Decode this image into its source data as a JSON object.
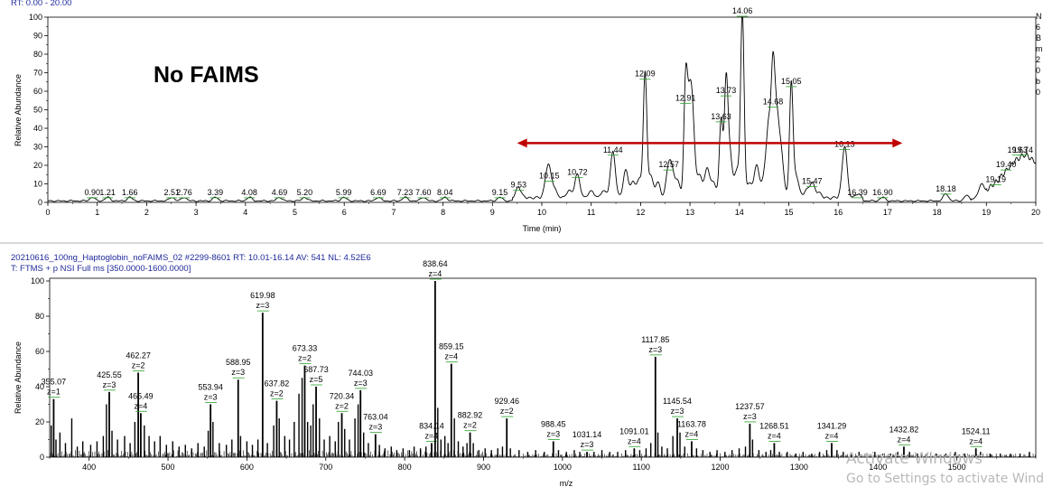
{
  "chromatogram": {
    "header": "RT: 0.00 - 20.00",
    "ylabel": "Relative Abundance",
    "xlabel": "Time (min)",
    "annotation": "No FAIMS",
    "side_text": "N\n6\nB\nm\n2\n0\nb\n0",
    "arrow_color": "#c00000"
  },
  "spectrum": {
    "header1": "20210616_100ng_Haptoglobin_noFAIMS_02 #2299-8601   RT: 10.01-16.14   AV: 541   NL: 4.52E6",
    "header2": "T: FTMS + p NSI Full ms [350.0000-1600.0000]",
    "ylabel": "Relative Abundance",
    "xlabel": "m/z"
  },
  "watermark": {
    "line1": "Activate Windows",
    "line2": "Go to Settings to activate Windows."
  },
  "chart_data": [
    {
      "type": "line",
      "title": "RT: 0.00 - 20.00",
      "xlabel": "Time (min)",
      "ylabel": "Relative Abundance",
      "xlim": [
        0,
        20
      ],
      "ylim": [
        0,
        100
      ],
      "x_ticks": [
        0,
        1,
        2,
        3,
        4,
        5,
        6,
        7,
        8,
        9,
        10,
        11,
        12,
        13,
        14,
        15,
        16,
        17,
        18,
        19,
        20
      ],
      "y_ticks": [
        0,
        10,
        20,
        30,
        40,
        50,
        60,
        70,
        80,
        90,
        100
      ],
      "peak_labels": [
        {
          "x": 0.9,
          "y": 2,
          "label": "0.90"
        },
        {
          "x": 1.21,
          "y": 2,
          "label": "1.21"
        },
        {
          "x": 1.66,
          "y": 2,
          "label": "1.66"
        },
        {
          "x": 2.51,
          "y": 2,
          "label": "2.51"
        },
        {
          "x": 2.76,
          "y": 2,
          "label": "2.76"
        },
        {
          "x": 3.39,
          "y": 2,
          "label": "3.39"
        },
        {
          "x": 4.08,
          "y": 2,
          "label": "4.08"
        },
        {
          "x": 4.69,
          "y": 2,
          "label": "4.69"
        },
        {
          "x": 5.2,
          "y": 2,
          "label": "5.20"
        },
        {
          "x": 5.99,
          "y": 2,
          "label": "5.99"
        },
        {
          "x": 6.69,
          "y": 2,
          "label": "6.69"
        },
        {
          "x": 7.23,
          "y": 2,
          "label": "7.23"
        },
        {
          "x": 7.6,
          "y": 2,
          "label": "7.60"
        },
        {
          "x": 8.04,
          "y": 2,
          "label": "8.04"
        },
        {
          "x": 9.15,
          "y": 2,
          "label": "9.15"
        },
        {
          "x": 9.53,
          "y": 6,
          "label": "9.53"
        },
        {
          "x": 10.15,
          "y": 11,
          "label": "10.15"
        },
        {
          "x": 10.72,
          "y": 13,
          "label": "10.72"
        },
        {
          "x": 11.44,
          "y": 25,
          "label": "11.44"
        },
        {
          "x": 12.09,
          "y": 66,
          "label": "12.09"
        },
        {
          "x": 12.57,
          "y": 17,
          "label": "12.57"
        },
        {
          "x": 12.91,
          "y": 53,
          "label": "12.91"
        },
        {
          "x": 13.63,
          "y": 43,
          "label": "13.63"
        },
        {
          "x": 13.73,
          "y": 57,
          "label": "13.73"
        },
        {
          "x": 14.06,
          "y": 100,
          "label": "14.06"
        },
        {
          "x": 14.68,
          "y": 51,
          "label": "14.68"
        },
        {
          "x": 15.05,
          "y": 62,
          "label": "15.05"
        },
        {
          "x": 15.47,
          "y": 8,
          "label": "15.47"
        },
        {
          "x": 16.13,
          "y": 28,
          "label": "16.13"
        },
        {
          "x": 16.39,
          "y": 2,
          "label": "16.39"
        },
        {
          "x": 16.9,
          "y": 2,
          "label": "16.90"
        },
        {
          "x": 18.18,
          "y": 4,
          "label": "18.18"
        },
        {
          "x": 19.19,
          "y": 9,
          "label": "19.19"
        },
        {
          "x": 19.4,
          "y": 17,
          "label": "19.40"
        },
        {
          "x": 19.63,
          "y": 25,
          "label": "19.63"
        },
        {
          "x": 19.74,
          "y": 25,
          "label": "19.74"
        }
      ],
      "minor_peaks": [
        {
          "x": 10.1,
          "y": 9
        },
        {
          "x": 10.25,
          "y": 5
        },
        {
          "x": 10.55,
          "y": 4
        },
        {
          "x": 11.0,
          "y": 4
        },
        {
          "x": 11.25,
          "y": 4
        },
        {
          "x": 11.7,
          "y": 15
        },
        {
          "x": 11.85,
          "y": 8
        },
        {
          "x": 11.98,
          "y": 10
        },
        {
          "x": 12.2,
          "y": 12
        },
        {
          "x": 12.35,
          "y": 8
        },
        {
          "x": 12.65,
          "y": 10
        },
        {
          "x": 12.75,
          "y": 8
        },
        {
          "x": 12.98,
          "y": 42
        },
        {
          "x": 13.05,
          "y": 38
        },
        {
          "x": 13.2,
          "y": 12
        },
        {
          "x": 13.35,
          "y": 16
        },
        {
          "x": 13.48,
          "y": 8
        },
        {
          "x": 13.8,
          "y": 25
        },
        {
          "x": 13.95,
          "y": 15
        },
        {
          "x": 14.2,
          "y": 8
        },
        {
          "x": 14.35,
          "y": 18
        },
        {
          "x": 14.5,
          "y": 10
        },
        {
          "x": 14.6,
          "y": 40
        },
        {
          "x": 14.75,
          "y": 44
        },
        {
          "x": 14.85,
          "y": 22
        },
        {
          "x": 15.15,
          "y": 12
        },
        {
          "x": 15.35,
          "y": 4
        },
        {
          "x": 15.6,
          "y": 3
        },
        {
          "x": 18.6,
          "y": 3
        },
        {
          "x": 18.9,
          "y": 6
        }
      ],
      "broad_hump": [
        {
          "x": 18.7,
          "y": 1
        },
        {
          "x": 18.9,
          "y": 3
        },
        {
          "x": 19.1,
          "y": 8
        },
        {
          "x": 19.3,
          "y": 13
        },
        {
          "x": 19.45,
          "y": 18
        },
        {
          "x": 19.6,
          "y": 22
        },
        {
          "x": 19.75,
          "y": 25
        },
        {
          "x": 19.85,
          "y": 24
        },
        {
          "x": 20.0,
          "y": 21
        }
      ],
      "arrow": {
        "x_start": 9.5,
        "x_end": 17.3,
        "y": 32
      }
    },
    {
      "type": "bar",
      "title": "20210616_100ng_Haptoglobin_noFAIMS_02",
      "xlabel": "m/z",
      "ylabel": "Relative Abundance",
      "xlim": [
        350,
        1600
      ],
      "ylim": [
        0,
        100
      ],
      "x_ticks": [
        400,
        500,
        600,
        700,
        800,
        900,
        1000,
        1100,
        1200,
        1300,
        1400,
        1500
      ],
      "y_ticks": [
        0,
        20,
        40,
        60,
        80,
        100
      ],
      "labeled_peaks": [
        {
          "mz": 355.07,
          "y": 33,
          "label": "355.07",
          "z": "z=1"
        },
        {
          "mz": 425.55,
          "y": 37,
          "label": "425.55",
          "z": "z=3"
        },
        {
          "mz": 462.27,
          "y": 48,
          "label": "462.27",
          "z": "z=2"
        },
        {
          "mz": 465.49,
          "y": 25,
          "label": "465.49",
          "z": "z=4"
        },
        {
          "mz": 553.94,
          "y": 30,
          "label": "553.94",
          "z": "z=3"
        },
        {
          "mz": 588.95,
          "y": 44,
          "label": "588.95",
          "z": "z=3"
        },
        {
          "mz": 619.98,
          "y": 82,
          "label": "619.98",
          "z": "z=3"
        },
        {
          "mz": 637.82,
          "y": 32,
          "label": "637.82",
          "z": "z=2"
        },
        {
          "mz": 673.33,
          "y": 52,
          "label": "673.33",
          "z": "z=2"
        },
        {
          "mz": 687.73,
          "y": 40,
          "label": "687.73",
          "z": "z=5"
        },
        {
          "mz": 720.34,
          "y": 25,
          "label": "720.34",
          "z": "z=2"
        },
        {
          "mz": 744.03,
          "y": 38,
          "label": "744.03",
          "z": "z=3"
        },
        {
          "mz": 763.04,
          "y": 13,
          "label": "763.04",
          "z": "z=3"
        },
        {
          "mz": 834.14,
          "y": 8,
          "label": "834.14",
          "z": "z=4"
        },
        {
          "mz": 838.64,
          "y": 100,
          "label": "838.64",
          "z": "z=4"
        },
        {
          "mz": 859.15,
          "y": 53,
          "label": "859.15",
          "z": "z=4"
        },
        {
          "mz": 882.92,
          "y": 14,
          "label": "882.92",
          "z": "z=2"
        },
        {
          "mz": 929.46,
          "y": 22,
          "label": "929.46",
          "z": "z=2"
        },
        {
          "mz": 988.45,
          "y": 9,
          "label": "988.45",
          "z": "z=3"
        },
        {
          "mz": 1031.14,
          "y": 3,
          "label": "1031.14",
          "z": "z=3"
        },
        {
          "mz": 1091.01,
          "y": 5,
          "label": "1091.01",
          "z": "z=4"
        },
        {
          "mz": 1117.85,
          "y": 57,
          "label": "1117.85",
          "z": "z=3"
        },
        {
          "mz": 1145.54,
          "y": 22,
          "label": "1145.54",
          "z": "z=3"
        },
        {
          "mz": 1163.78,
          "y": 9,
          "label": "1163.78",
          "z": "z=4"
        },
        {
          "mz": 1237.57,
          "y": 19,
          "label": "1237.57",
          "z": "z=3"
        },
        {
          "mz": 1268.51,
          "y": 8,
          "label": "1268.51",
          "z": "z=4"
        },
        {
          "mz": 1341.29,
          "y": 8,
          "label": "1341.29",
          "z": "z=4"
        },
        {
          "mz": 1432.82,
          "y": 6,
          "label": "1432.82",
          "z": "z=4"
        },
        {
          "mz": 1524.11,
          "y": 5,
          "label": "1524.11",
          "z": "z=4"
        }
      ],
      "unlabeled_peaks": [
        {
          "mz": 352,
          "y": 18
        },
        {
          "mz": 358,
          "y": 10
        },
        {
          "mz": 363,
          "y": 14
        },
        {
          "mz": 370,
          "y": 8
        },
        {
          "mz": 378,
          "y": 22
        },
        {
          "mz": 385,
          "y": 6
        },
        {
          "mz": 392,
          "y": 9
        },
        {
          "mz": 402,
          "y": 7
        },
        {
          "mz": 410,
          "y": 9
        },
        {
          "mz": 418,
          "y": 12
        },
        {
          "mz": 422,
          "y": 30
        },
        {
          "mz": 429,
          "y": 15
        },
        {
          "mz": 436,
          "y": 10
        },
        {
          "mz": 445,
          "y": 12
        },
        {
          "mz": 452,
          "y": 8
        },
        {
          "mz": 458,
          "y": 20
        },
        {
          "mz": 470,
          "y": 18
        },
        {
          "mz": 476,
          "y": 12
        },
        {
          "mz": 483,
          "y": 9
        },
        {
          "mz": 490,
          "y": 12
        },
        {
          "mz": 498,
          "y": 7
        },
        {
          "mz": 506,
          "y": 9
        },
        {
          "mz": 514,
          "y": 6
        },
        {
          "mz": 522,
          "y": 7
        },
        {
          "mz": 530,
          "y": 5
        },
        {
          "mz": 538,
          "y": 8
        },
        {
          "mz": 546,
          "y": 6
        },
        {
          "mz": 551,
          "y": 15
        },
        {
          "mz": 557,
          "y": 20
        },
        {
          "mz": 565,
          "y": 8
        },
        {
          "mz": 574,
          "y": 7
        },
        {
          "mz": 581,
          "y": 10
        },
        {
          "mz": 592,
          "y": 12
        },
        {
          "mz": 600,
          "y": 9
        },
        {
          "mz": 607,
          "y": 7
        },
        {
          "mz": 614,
          "y": 10
        },
        {
          "mz": 626,
          "y": 8
        },
        {
          "mz": 634,
          "y": 18
        },
        {
          "mz": 641,
          "y": 22
        },
        {
          "mz": 648,
          "y": 12
        },
        {
          "mz": 654,
          "y": 10
        },
        {
          "mz": 660,
          "y": 20
        },
        {
          "mz": 666,
          "y": 36
        },
        {
          "mz": 670,
          "y": 45
        },
        {
          "mz": 677,
          "y": 20
        },
        {
          "mz": 681,
          "y": 18
        },
        {
          "mz": 684,
          "y": 30
        },
        {
          "mz": 692,
          "y": 22
        },
        {
          "mz": 698,
          "y": 10
        },
        {
          "mz": 705,
          "y": 12
        },
        {
          "mz": 712,
          "y": 9
        },
        {
          "mz": 716,
          "y": 20
        },
        {
          "mz": 724,
          "y": 16
        },
        {
          "mz": 730,
          "y": 10
        },
        {
          "mz": 737,
          "y": 22
        },
        {
          "mz": 741,
          "y": 30
        },
        {
          "mz": 748,
          "y": 14
        },
        {
          "mz": 754,
          "y": 8
        },
        {
          "mz": 768,
          "y": 7
        },
        {
          "mz": 775,
          "y": 5
        },
        {
          "mz": 783,
          "y": 6
        },
        {
          "mz": 790,
          "y": 4
        },
        {
          "mz": 798,
          "y": 5
        },
        {
          "mz": 806,
          "y": 4
        },
        {
          "mz": 812,
          "y": 6
        },
        {
          "mz": 820,
          "y": 5
        },
        {
          "mz": 827,
          "y": 6
        },
        {
          "mz": 842,
          "y": 28
        },
        {
          "mz": 846,
          "y": 10
        },
        {
          "mz": 851,
          "y": 12
        },
        {
          "mz": 855,
          "y": 8
        },
        {
          "mz": 863,
          "y": 22
        },
        {
          "mz": 868,
          "y": 9
        },
        {
          "mz": 874,
          "y": 6
        },
        {
          "mz": 879,
          "y": 8
        },
        {
          "mz": 887,
          "y": 8
        },
        {
          "mz": 894,
          "y": 4
        },
        {
          "mz": 902,
          "y": 5
        },
        {
          "mz": 910,
          "y": 4
        },
        {
          "mz": 918,
          "y": 5
        },
        {
          "mz": 924,
          "y": 6
        },
        {
          "mz": 934,
          "y": 5
        },
        {
          "mz": 945,
          "y": 4
        },
        {
          "mz": 956,
          "y": 3
        },
        {
          "mz": 966,
          "y": 4
        },
        {
          "mz": 977,
          "y": 3
        },
        {
          "mz": 995,
          "y": 4
        },
        {
          "mz": 1005,
          "y": 3
        },
        {
          "mz": 1015,
          "y": 4
        },
        {
          "mz": 1022,
          "y": 3
        },
        {
          "mz": 1040,
          "y": 3
        },
        {
          "mz": 1050,
          "y": 4
        },
        {
          "mz": 1060,
          "y": 3
        },
        {
          "mz": 1070,
          "y": 3
        },
        {
          "mz": 1080,
          "y": 4
        },
        {
          "mz": 1098,
          "y": 4
        },
        {
          "mz": 1106,
          "y": 5
        },
        {
          "mz": 1112,
          "y": 8
        },
        {
          "mz": 1121,
          "y": 14
        },
        {
          "mz": 1126,
          "y": 6
        },
        {
          "mz": 1133,
          "y": 5
        },
        {
          "mz": 1140,
          "y": 12
        },
        {
          "mz": 1149,
          "y": 14
        },
        {
          "mz": 1155,
          "y": 6
        },
        {
          "mz": 1170,
          "y": 5
        },
        {
          "mz": 1178,
          "y": 4
        },
        {
          "mz": 1187,
          "y": 3
        },
        {
          "mz": 1196,
          "y": 4
        },
        {
          "mz": 1206,
          "y": 3
        },
        {
          "mz": 1215,
          "y": 4
        },
        {
          "mz": 1224,
          "y": 5
        },
        {
          "mz": 1232,
          "y": 6
        },
        {
          "mz": 1241,
          "y": 10
        },
        {
          "mz": 1249,
          "y": 4
        },
        {
          "mz": 1258,
          "y": 3
        },
        {
          "mz": 1264,
          "y": 4
        },
        {
          "mz": 1275,
          "y": 3
        },
        {
          "mz": 1285,
          "y": 3
        },
        {
          "mz": 1296,
          "y": 2
        },
        {
          "mz": 1305,
          "y": 3
        },
        {
          "mz": 1316,
          "y": 2
        },
        {
          "mz": 1326,
          "y": 3
        },
        {
          "mz": 1335,
          "y": 4
        },
        {
          "mz": 1348,
          "y": 4
        },
        {
          "mz": 1356,
          "y": 3
        },
        {
          "mz": 1366,
          "y": 2
        },
        {
          "mz": 1376,
          "y": 3
        },
        {
          "mz": 1386,
          "y": 2
        },
        {
          "mz": 1396,
          "y": 3
        },
        {
          "mz": 1406,
          "y": 2
        },
        {
          "mz": 1416,
          "y": 2
        },
        {
          "mz": 1425,
          "y": 3
        },
        {
          "mz": 1440,
          "y": 3
        },
        {
          "mz": 1450,
          "y": 2
        },
        {
          "mz": 1462,
          "y": 2
        },
        {
          "mz": 1474,
          "y": 2
        },
        {
          "mz": 1486,
          "y": 2
        },
        {
          "mz": 1498,
          "y": 3
        },
        {
          "mz": 1510,
          "y": 2
        },
        {
          "mz": 1530,
          "y": 3
        },
        {
          "mz": 1542,
          "y": 2
        },
        {
          "mz": 1555,
          "y": 2
        },
        {
          "mz": 1568,
          "y": 2
        },
        {
          "mz": 1580,
          "y": 2
        },
        {
          "mz": 1592,
          "y": 3
        }
      ]
    }
  ]
}
